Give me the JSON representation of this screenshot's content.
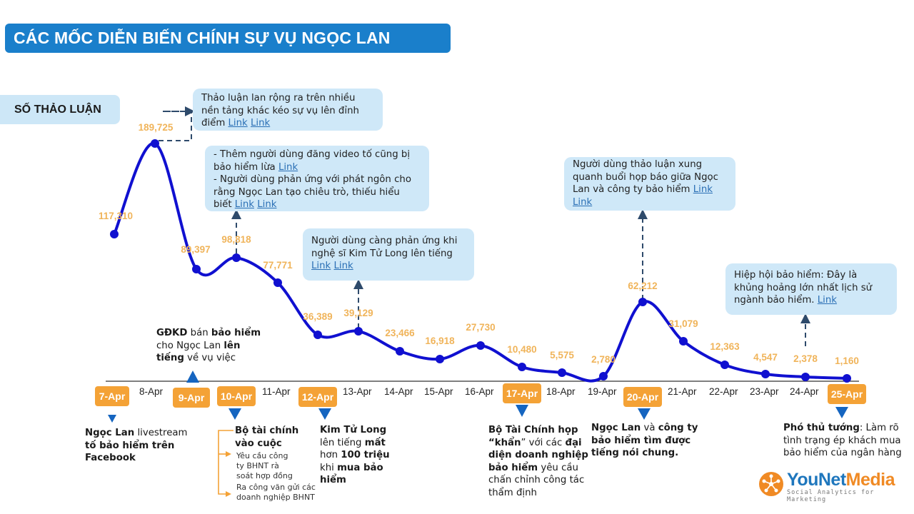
{
  "title": "CÁC MỐC DIỄN BIẾN CHÍNH SỰ VỤ NGỌC LAN",
  "series_label": "SỐ THẢO LUẬN",
  "colors": {
    "title_bg": "#1a7fcb",
    "line": "#1010d0",
    "data_label": "#f0b45a",
    "date_badge": "#f4a236",
    "callout_bg": "#cfe8f8",
    "link": "#2a6fb5",
    "event_arrow": "#1565c0"
  },
  "chart_data": {
    "type": "line",
    "title": "CÁC MỐC DIỄN BIẾN CHÍNH SỰ VỤ NGỌC LAN",
    "ylabel": "SỐ THẢO LUẬN",
    "xlabel": "",
    "categories": [
      "7-Apr",
      "8-Apr",
      "9-Apr",
      "10-Apr",
      "11-Apr",
      "12-Apr",
      "13-Apr",
      "14-Apr",
      "15-Apr",
      "16-Apr",
      "17-Apr",
      "18-Apr",
      "19-Apr",
      "20-Apr",
      "21-Apr",
      "22-Apr",
      "23-Apr",
      "24-Apr",
      "25-Apr"
    ],
    "values": [
      117310,
      189725,
      89397,
      98818,
      77771,
      36389,
      39129,
      23466,
      16918,
      27730,
      10480,
      5575,
      2780,
      62212,
      31079,
      12363,
      4547,
      2378,
      1160
    ],
    "value_labels": [
      "117,310",
      "189,725",
      "89,397",
      "98,818",
      "77,771",
      "36,389",
      "39,129",
      "23,466",
      "16,918",
      "27,730",
      "10,480",
      "5,575",
      "2,780",
      "62,212",
      "31,079",
      "12,363",
      "4,547",
      "2,378",
      "1,160"
    ],
    "highlighted_dates": [
      "7-Apr",
      "9-Apr",
      "10-Apr",
      "12-Apr",
      "17-Apr",
      "20-Apr",
      "25-Apr"
    ],
    "grid": false,
    "legend": "none"
  },
  "callouts": [
    {
      "text": "Thảo luận lan rộng ra trên nhiều nền tảng khác kéo sự vụ lên đỉnh điểm ",
      "links": [
        "Link",
        "Link"
      ]
    },
    {
      "line1": "- Thêm người dùng đăng video tố cũng bị bảo hiểm lừa ",
      "link1": "Link",
      "line2": "- Người dùng phản ứng với phát ngôn cho rằng Ngọc Lan tạo chiêu trò, thiếu hiểu biết ",
      "links2": [
        "Link",
        "Link"
      ]
    },
    {
      "text": "Người dùng càng phản ứng khi nghệ sĩ Kim Tử Long lên tiếng ",
      "links": [
        "Link",
        "Link"
      ]
    },
    {
      "text": "Người dùng thảo luận xung quanh buổi họp báo giữa Ngọc Lan và công ty bảo hiểm ",
      "links": [
        "Link",
        "Link"
      ]
    },
    {
      "text": "Hiệp hội bảo hiểm: Đây là khủng hoảng lớn nhất lịch sử ngành bảo hiểm. ",
      "links": [
        "Link"
      ]
    }
  ],
  "events": {
    "apr7": {
      "b1": "Ngọc Lan",
      "t1": " livestream ",
      "b2": "tố bảo hiểm trên Facebook"
    },
    "apr9": {
      "b1": "GĐKD",
      "t1": " bán ",
      "b2": "bảo hiểm",
      "t2": " cho Ngọc Lan ",
      "b3": "lên tiếng",
      "t3": " về vụ việc"
    },
    "apr10": {
      "heading": "Bộ tài chính vào cuộc",
      "sub1": "Yêu cầu công ty BHNT  rà soát hợp đồng",
      "sub2": "Ra công văn gửi các doanh nghiệp BHNT"
    },
    "apr12": {
      "b1": "Kim Tử Long",
      "t1": " lên tiếng ",
      "b2": "mất",
      "t2": " hơn ",
      "b3": "100 triệu",
      "t3": " khi ",
      "b4": "mua bảo hiểm"
    },
    "apr17": {
      "b1": "Bộ Tài Chính họp “khẩn",
      "t1": "” với các ",
      "b2": "đại diện doanh nghiệp bảo hiểm",
      "t2": " yêu cầu chấn chỉnh công tác thẩm định"
    },
    "apr20": {
      "b1": "Ngọc Lan",
      "t1": " và ",
      "b2": "công ty bảo hiểm tìm được tiếng nói chung."
    },
    "apr25": {
      "b1": "Phó thủ tướng",
      "t1": ": Làm rõ tình trạng ép khách mua bảo hiểm của ngân hàng"
    }
  },
  "logo": {
    "brand_a": "YouNet",
    "brand_b": "Media",
    "tagline": "Social Analytics for Marketing"
  }
}
